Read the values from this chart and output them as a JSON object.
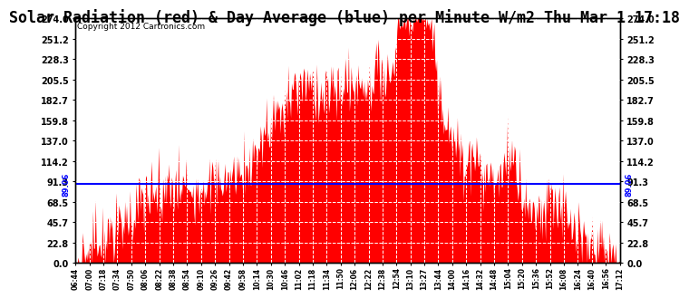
{
  "title": "Solar Radiation (red) & Day Average (blue) per Minute W/m2 Thu Mar 1 17:18",
  "copyright": "Copyright 2012 Cartronics.com",
  "avg_line": 89.06,
  "avg_label": "89.06",
  "ymin": 0.0,
  "ymax": 274.0,
  "yticks": [
    0.0,
    22.8,
    45.7,
    68.5,
    91.3,
    114.2,
    137.0,
    159.8,
    182.7,
    205.5,
    228.3,
    251.2,
    274.0
  ],
  "ytick_labels": [
    "0.0",
    "22.8",
    "45.7",
    "68.5",
    "91.3",
    "114.2",
    "137.0",
    "159.8",
    "182.7",
    "205.5",
    "228.3",
    "251.2",
    "274.0"
  ],
  "xtick_labels": [
    "06:44",
    "07:00",
    "07:18",
    "07:34",
    "07:50",
    "08:06",
    "08:22",
    "08:38",
    "08:54",
    "09:10",
    "09:26",
    "09:42",
    "09:58",
    "10:14",
    "10:30",
    "10:46",
    "11:02",
    "11:18",
    "11:34",
    "11:50",
    "12:06",
    "12:22",
    "12:38",
    "12:54",
    "13:10",
    "13:27",
    "13:44",
    "14:00",
    "14:16",
    "14:32",
    "14:48",
    "15:04",
    "15:20",
    "15:36",
    "15:52",
    "16:08",
    "16:24",
    "16:40",
    "16:56",
    "17:12"
  ],
  "fill_color": "#FF0000",
  "line_color": "#0000FF",
  "bg_color": "#FFFFFF",
  "title_fontsize": 12,
  "copyright_fontsize": 6.5
}
